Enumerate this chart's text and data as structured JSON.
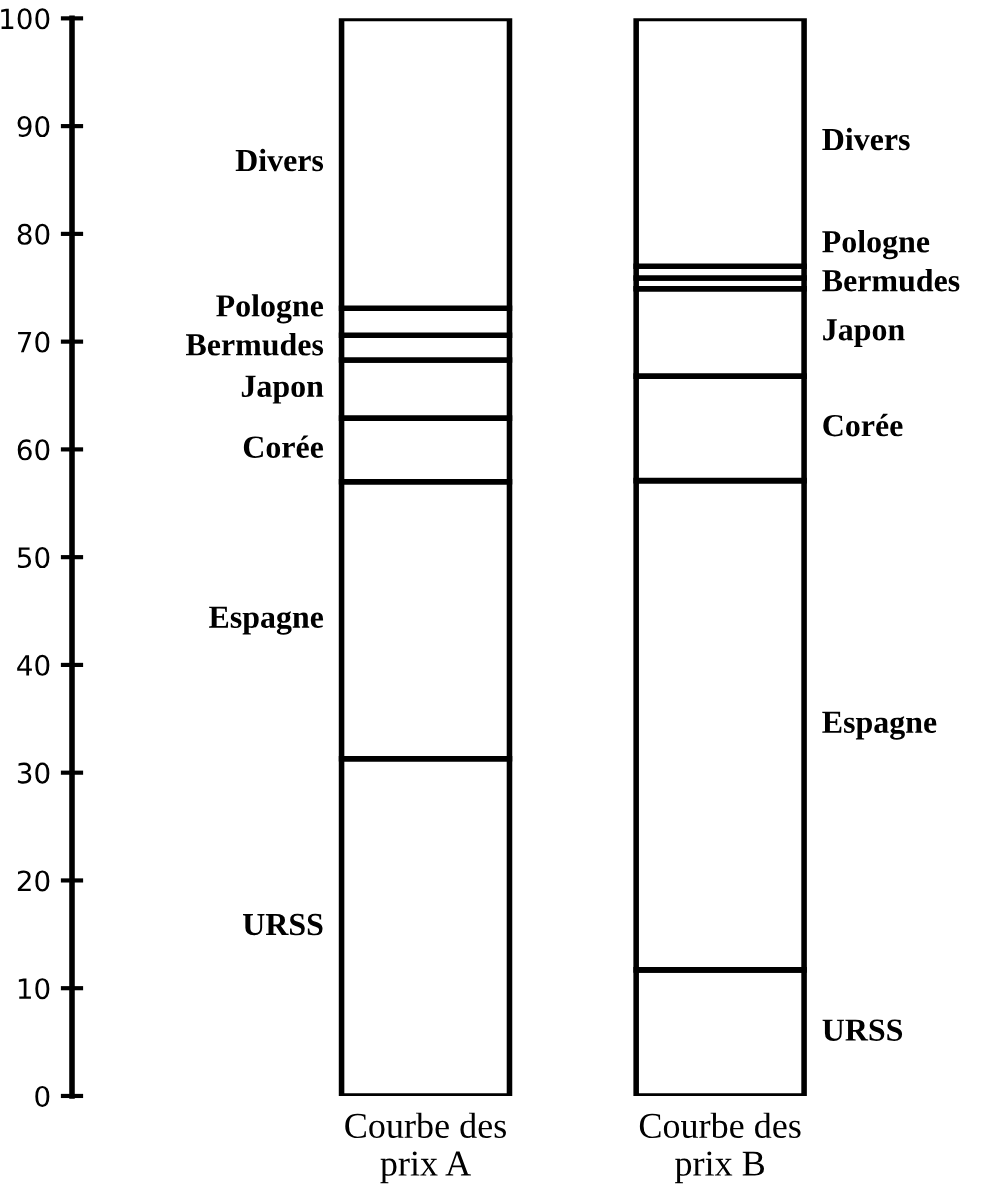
{
  "chart_data": {
    "type": "bar",
    "stacked": true,
    "categories": [
      "Courbe des\nprix A",
      "Courbe des\nprix B"
    ],
    "series": [
      {
        "name": "URSS",
        "color": "#ffffff",
        "values": [
          31.3,
          11.7
        ]
      },
      {
        "name": "Espagne",
        "color": "#ffffff",
        "values": [
          25.7,
          45.4
        ]
      },
      {
        "name": "Corée",
        "color": "#ffffff",
        "values": [
          5.9,
          9.7
        ]
      },
      {
        "name": "Japon",
        "color": "#ffffff",
        "values": [
          5.4,
          8.1
        ]
      },
      {
        "name": "Bermudes",
        "color": "#ffffff",
        "values": [
          2.3,
          1.0
        ]
      },
      {
        "name": "Pologne",
        "color": "#ffffff",
        "values": [
          2.5,
          1.1
        ]
      },
      {
        "name": "Divers",
        "color": "#ffffff",
        "values": [
          26.9,
          23.0
        ]
      }
    ],
    "ylim": [
      0,
      100
    ],
    "yticks": [
      0,
      10,
      20,
      30,
      40,
      50,
      60,
      70,
      80,
      90,
      100
    ],
    "grid": false,
    "legend": false
  }
}
